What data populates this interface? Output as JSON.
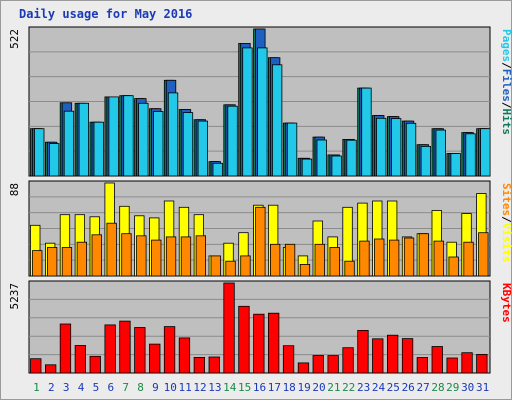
{
  "title": "Daily usage for May 2016",
  "colors": {
    "hits": "#0f7a5a",
    "files": "#1f5fc0",
    "pages": "#22c8e8",
    "visits": "#ffff00",
    "sites": "#ff8800",
    "kbytes": "#ff0000",
    "weekend_day": "#1a8a4a",
    "weekday": "#1a3ab8",
    "plot_bg": "#bfbfbf"
  },
  "chart_data": [
    {
      "type": "bar",
      "name": "hits-files-pages",
      "max_label": "522",
      "ylim": [
        0,
        522
      ],
      "legend": [
        {
          "text": "Pages",
          "color": "#22c8e8"
        },
        {
          "text": "Files",
          "color": "#1f5fc0"
        },
        {
          "text": "Hits",
          "color": "#0f7a5a"
        }
      ],
      "categories": [
        "1",
        "2",
        "3",
        "4",
        "5",
        "6",
        "7",
        "8",
        "9",
        "10",
        "11",
        "12",
        "13",
        "14",
        "15",
        "16",
        "17",
        "18",
        "19",
        "20",
        "21",
        "22",
        "23",
        "24",
        "25",
        "26",
        "27",
        "28",
        "29",
        "30",
        "31"
      ],
      "series": [
        {
          "name": "Hits",
          "values": [
            168,
            120,
            260,
            258,
            191,
            281,
            285,
            275,
            239,
            340,
            236,
            200,
            51,
            253,
            471,
            522,
            420,
            188,
            63,
            138,
            75,
            130,
            312,
            215,
            211,
            195,
            111,
            168,
            80,
            154,
            168
          ]
        },
        {
          "name": "Files",
          "values": [
            168,
            120,
            260,
            258,
            191,
            281,
            285,
            275,
            239,
            340,
            236,
            200,
            51,
            253,
            471,
            522,
            420,
            188,
            63,
            138,
            75,
            130,
            312,
            215,
            211,
            195,
            111,
            168,
            80,
            154,
            168
          ]
        },
        {
          "name": "Pages",
          "values": [
            168,
            115,
            230,
            258,
            191,
            281,
            285,
            258,
            229,
            295,
            225,
            195,
            45,
            248,
            455,
            455,
            395,
            188,
            60,
            128,
            71,
            127,
            312,
            205,
            204,
            187,
            105,
            163,
            80,
            150,
            168
          ]
        }
      ]
    },
    {
      "type": "bar",
      "name": "visits-sites",
      "max_label": "88",
      "ylim": [
        0,
        88
      ],
      "legend": [
        {
          "text": "Sites",
          "color": "#ff8800"
        },
        {
          "text": "Visits",
          "color": "#ffff00"
        }
      ],
      "categories": [
        "1",
        "2",
        "3",
        "4",
        "5",
        "6",
        "7",
        "8",
        "9",
        "10",
        "11",
        "12",
        "13",
        "14",
        "15",
        "16",
        "17",
        "18",
        "19",
        "20",
        "21",
        "22",
        "23",
        "24",
        "25",
        "26",
        "27",
        "28",
        "29",
        "30",
        "31"
      ],
      "series": [
        {
          "name": "Visits",
          "values": [
            48,
            31,
            58,
            58,
            56,
            88,
            66,
            57,
            55,
            71,
            65,
            58,
            19,
            31,
            41,
            67,
            67,
            27,
            19,
            52,
            37,
            65,
            69,
            71,
            71,
            37,
            40,
            62,
            32,
            59,
            78
          ]
        },
        {
          "name": "Sites",
          "values": [
            24,
            27,
            27,
            32,
            39,
            50,
            40,
            38,
            34,
            37,
            37,
            38,
            19,
            14,
            19,
            65,
            30,
            30,
            11,
            30,
            27,
            14,
            33,
            35,
            34,
            36,
            40,
            33,
            18,
            32,
            41
          ]
        }
      ]
    },
    {
      "type": "bar",
      "name": "kbytes",
      "max_label": "5237",
      "ylim": [
        0,
        5237
      ],
      "legend": [
        {
          "text": "KBytes",
          "color": "#ff0000"
        }
      ],
      "categories": [
        "1",
        "2",
        "3",
        "4",
        "5",
        "6",
        "7",
        "8",
        "9",
        "10",
        "11",
        "12",
        "13",
        "14",
        "15",
        "16",
        "17",
        "18",
        "19",
        "20",
        "21",
        "22",
        "23",
        "24",
        "25",
        "26",
        "27",
        "28",
        "29",
        "30",
        "31"
      ],
      "series": [
        {
          "name": "KBytes",
          "values": [
            830,
            480,
            2850,
            1600,
            970,
            2800,
            3020,
            2650,
            1680,
            2700,
            2040,
            910,
            930,
            5237,
            3880,
            3420,
            3480,
            1590,
            590,
            1020,
            1010,
            1470,
            2480,
            1990,
            2200,
            2000,
            900,
            1540,
            870,
            1180,
            1080
          ]
        }
      ]
    }
  ],
  "x_labels": [
    "1",
    "2",
    "3",
    "4",
    "5",
    "6",
    "7",
    "8",
    "9",
    "10",
    "11",
    "12",
    "13",
    "14",
    "15",
    "16",
    "17",
    "18",
    "19",
    "20",
    "21",
    "22",
    "23",
    "24",
    "25",
    "26",
    "27",
    "28",
    "29",
    "30",
    "31"
  ],
  "weekend_days": [
    1,
    7,
    8,
    14,
    15,
    21,
    22,
    28,
    29
  ]
}
